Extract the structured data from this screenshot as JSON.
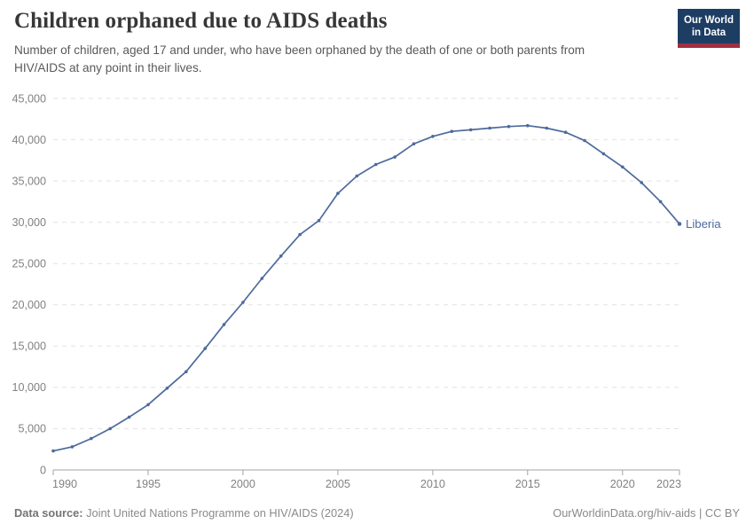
{
  "header": {
    "title": "Children orphaned due to AIDS deaths",
    "subtitle": "Number of children, aged 17 and under, who have been orphaned by the death of one or both parents from HIV/AIDS at any point in their lives.",
    "logo": {
      "line1": "Our World",
      "line2": "in Data",
      "bg_color": "#1d3d63",
      "accent_color": "#a22e41"
    }
  },
  "chart_data": {
    "type": "line",
    "title": "Children orphaned due to AIDS deaths",
    "xlabel": "",
    "ylabel": "",
    "xlim": [
      1990,
      2023
    ],
    "ylim": [
      0,
      45000
    ],
    "yticks": [
      0,
      5000,
      10000,
      15000,
      20000,
      25000,
      30000,
      35000,
      40000,
      45000
    ],
    "xticks": [
      1990,
      1995,
      2000,
      2005,
      2010,
      2015,
      2020,
      2023
    ],
    "grid": "horizontal-dashed",
    "end_label": "Liberia",
    "x": [
      1990,
      1991,
      1992,
      1993,
      1994,
      1995,
      1996,
      1997,
      1998,
      1999,
      2000,
      2001,
      2002,
      2003,
      2004,
      2005,
      2006,
      2007,
      2008,
      2009,
      2010,
      2011,
      2012,
      2013,
      2014,
      2015,
      2016,
      2017,
      2018,
      2019,
      2020,
      2021,
      2022,
      2023
    ],
    "series": [
      {
        "name": "Liberia",
        "color": "#4c6a9c",
        "values": [
          2300,
          2800,
          3800,
          5000,
          6400,
          7900,
          9900,
          11900,
          14700,
          17600,
          20300,
          23200,
          25900,
          28500,
          30200,
          33500,
          35600,
          37000,
          37900,
          39500,
          40400,
          41000,
          41200,
          41400,
          41600,
          41700,
          41400,
          40900,
          39900,
          38300,
          36700,
          34800,
          32500,
          29800
        ]
      }
    ]
  },
  "footer": {
    "source_label": "Data source:",
    "source_text": "Joint United Nations Programme on HIV/AIDS (2024)",
    "credit": "OurWorldinData.org/hiv-aids | CC BY"
  }
}
